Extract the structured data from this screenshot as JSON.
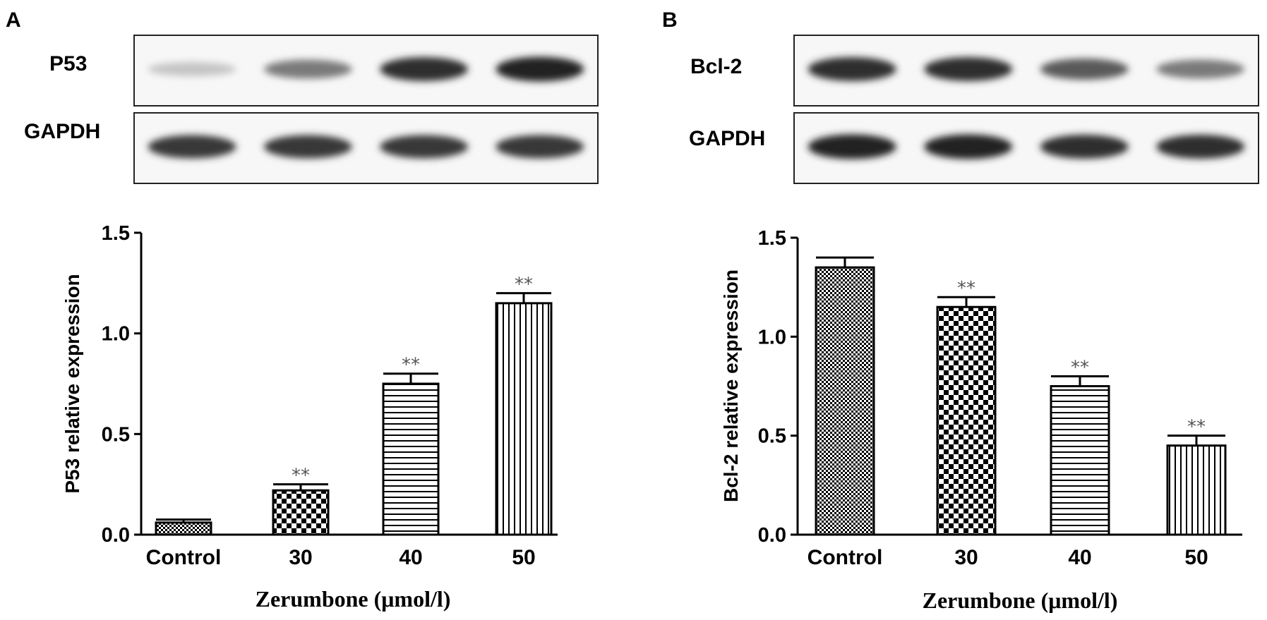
{
  "figure": {
    "panels": [
      {
        "letter": "A",
        "blots": [
          {
            "label": "P53",
            "band_intensity": [
              0.2,
              0.55,
              0.9,
              0.95
            ]
          },
          {
            "label": "GAPDH",
            "band_intensity": [
              0.85,
              0.85,
              0.85,
              0.85
            ]
          }
        ]
      },
      {
        "letter": "B",
        "blots": [
          {
            "label": "Bcl-2",
            "band_intensity": [
              0.9,
              0.9,
              0.7,
              0.55
            ]
          },
          {
            "label": "GAPDH",
            "band_intensity": [
              0.95,
              0.95,
              0.9,
              0.9
            ]
          }
        ]
      }
    ]
  },
  "chart_data": [
    {
      "type": "bar",
      "categories": [
        "Control",
        "30",
        "40",
        "50"
      ],
      "values": [
        0.06,
        0.22,
        0.75,
        1.15
      ],
      "errors": [
        0.015,
        0.03,
        0.05,
        0.05
      ],
      "significance": [
        "",
        "**",
        "**",
        "**"
      ],
      "patterns": [
        "fine-checker",
        "checker",
        "horizontal-lines",
        "vertical-lines"
      ],
      "xlabel": "Zerumbone (μmol/l)",
      "ylabel": "P53 relative expression",
      "ylim": [
        0,
        1.5
      ],
      "yticks": [
        "0.0",
        "0.5",
        "1.0",
        "1.5"
      ],
      "grid": false
    },
    {
      "type": "bar",
      "categories": [
        "Control",
        "30",
        "40",
        "50"
      ],
      "values": [
        1.35,
        1.15,
        0.75,
        0.45
      ],
      "errors": [
        0.05,
        0.05,
        0.05,
        0.05
      ],
      "significance": [
        "",
        "**",
        "**",
        "**"
      ],
      "patterns": [
        "fine-checker",
        "checker",
        "horizontal-lines",
        "vertical-lines"
      ],
      "xlabel": "Zerumbone (μmol/l)",
      "ylabel": "Bcl-2 relative expression",
      "ylim": [
        0,
        1.5
      ],
      "yticks": [
        "0.0",
        "0.5",
        "1.0",
        "1.5"
      ],
      "grid": false
    }
  ]
}
